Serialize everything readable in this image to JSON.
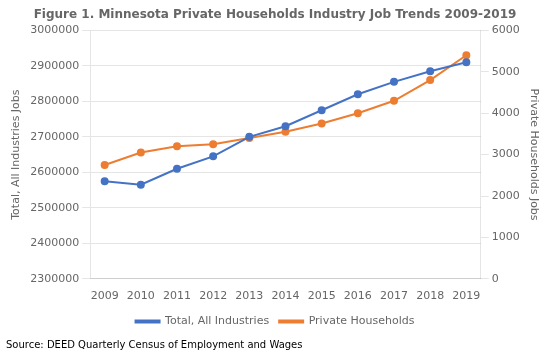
{
  "chart_data": {
    "type": "line",
    "title": "Figure 1. Minnesota Private Households Industry Job Trends 2009-2019",
    "x": [
      2009,
      2010,
      2011,
      2012,
      2013,
      2014,
      2015,
      2016,
      2017,
      2018,
      2019
    ],
    "xlim": [
      2008.6,
      2019.4
    ],
    "xticks": [
      2009,
      2010,
      2011,
      2012,
      2013,
      2014,
      2015,
      2016,
      2017,
      2018,
      2019
    ],
    "series": [
      {
        "name": "Total, All Industries",
        "color": "#4472C4",
        "marker": "circle",
        "values": [
          2575000,
          2565000,
          2610000,
          2645000,
          2700000,
          2730000,
          2775000,
          2820000,
          2855000,
          2885000,
          2910000
        ]
      },
      {
        "name": "Private Households",
        "color": "#ED7D31",
        "marker": "circle",
        "axis": "y2",
        "values": [
          2750,
          3050,
          3200,
          3250,
          3400,
          3550,
          3750,
          4000,
          4300,
          4800,
          5400
        ]
      }
    ],
    "ylabel": "Total, All Industries Jobs",
    "y2label": "Private Households Jobs",
    "ylim": [
      2300000,
      3000000
    ],
    "yticks": [
      2300000,
      2400000,
      2500000,
      2600000,
      2700000,
      2800000,
      2900000,
      3000000
    ],
    "y2lim": [
      0,
      6000
    ],
    "y2ticks": [
      0,
      1000,
      2000,
      3000,
      4000,
      5000,
      6000
    ],
    "grid": true,
    "legend": "bottom",
    "annotation": "Source: DEED Quarterly Census of Employment and Wages"
  }
}
